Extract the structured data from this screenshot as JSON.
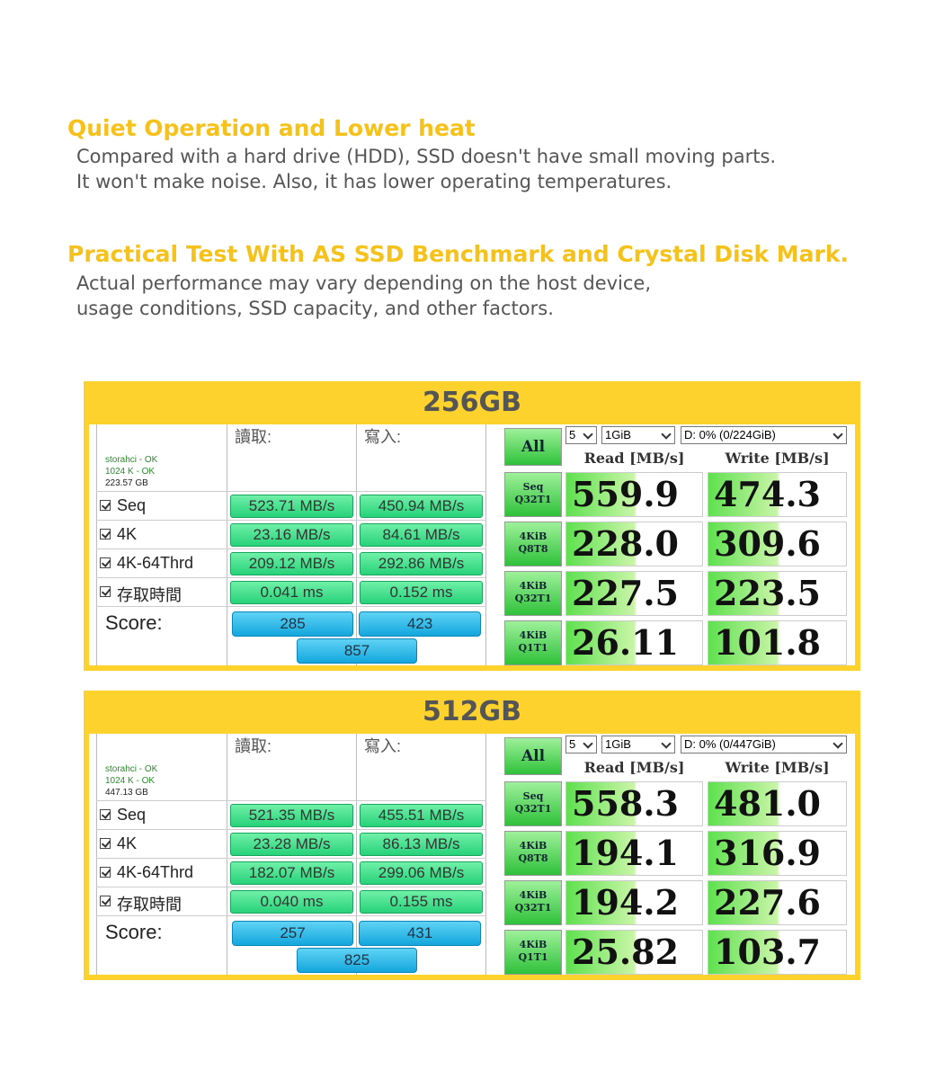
{
  "sections": [
    {
      "title": "Quiet Operation and Lower heat",
      "lines": [
        "Compared with a hard drive (HDD), SSD doesn't have small moving parts.",
        "It won't make noise. Also, it has lower operating temperatures."
      ]
    },
    {
      "title": "Practical Test With AS SSD Benchmark and Crystal Disk Mark.",
      "lines": [
        "Actual performance may vary depending on the host device,",
        "usage conditions, SSD capacity, and other factors."
      ]
    }
  ],
  "benchmarks": [
    {
      "capacity": "256GB",
      "as_ssd": {
        "read_header": "讀取:",
        "write_header": "寫入:",
        "info": [
          "storahci - OK",
          "1024 K - OK",
          "223.57 GB"
        ],
        "rows": [
          {
            "label": "Seq",
            "read": "523.71 MB/s",
            "write": "450.94 MB/s"
          },
          {
            "label": "4K",
            "read": "23.16 MB/s",
            "write": "84.61 MB/s"
          },
          {
            "label": "4K-64Thrd",
            "read": "209.12 MB/s",
            "write": "292.86 MB/s"
          },
          {
            "label": "存取時間",
            "read": "0.041 ms",
            "write": "0.152 ms"
          }
        ],
        "score_label": "Score:",
        "score_read": "285",
        "score_write": "423",
        "score_total": "857"
      },
      "crystal": {
        "all": "All",
        "count": "5",
        "size": "1GiB",
        "drive": "D: 0% (0/224GiB)",
        "read_header": "Read [MB/s]",
        "write_header": "Write [MB/s]",
        "rows": [
          {
            "label": [
              "Seq",
              "Q32T1"
            ],
            "read": "559.9",
            "write": "474.3"
          },
          {
            "label": [
              "4KiB",
              "Q8T8"
            ],
            "read": "228.0",
            "write": "309.6"
          },
          {
            "label": [
              "4KiB",
              "Q32T1"
            ],
            "read": "227.5",
            "write": "223.5"
          },
          {
            "label": [
              "4KiB",
              "Q1T1"
            ],
            "read": "26.11",
            "write": "101.8"
          }
        ]
      }
    },
    {
      "capacity": "512GB",
      "as_ssd": {
        "read_header": "讀取:",
        "write_header": "寫入:",
        "info": [
          "storahci - OK",
          "1024 K - OK",
          "447.13 GB"
        ],
        "rows": [
          {
            "label": "Seq",
            "read": "521.35 MB/s",
            "write": "455.51 MB/s"
          },
          {
            "label": "4K",
            "read": "23.28 MB/s",
            "write": "86.13 MB/s"
          },
          {
            "label": "4K-64Thrd",
            "read": "182.07 MB/s",
            "write": "299.06 MB/s"
          },
          {
            "label": "存取時間",
            "read": "0.040 ms",
            "write": "0.155 ms"
          }
        ],
        "score_label": "Score:",
        "score_read": "257",
        "score_write": "431",
        "score_total": "825"
      },
      "crystal": {
        "all": "All",
        "count": "5",
        "size": "1GiB",
        "drive": "D: 0% (0/447GiB)",
        "read_header": "Read [MB/s]",
        "write_header": "Write [MB/s]",
        "rows": [
          {
            "label": [
              "Seq",
              "Q32T1"
            ],
            "read": "558.3",
            "write": "481.0"
          },
          {
            "label": [
              "4KiB",
              "Q8T8"
            ],
            "read": "194.1",
            "write": "316.9"
          },
          {
            "label": [
              "4KiB",
              "Q32T1"
            ],
            "read": "194.2",
            "write": "227.6"
          },
          {
            "label": [
              "4KiB",
              "Q1T1"
            ],
            "read": "25.82",
            "write": "103.7"
          }
        ]
      }
    }
  ]
}
